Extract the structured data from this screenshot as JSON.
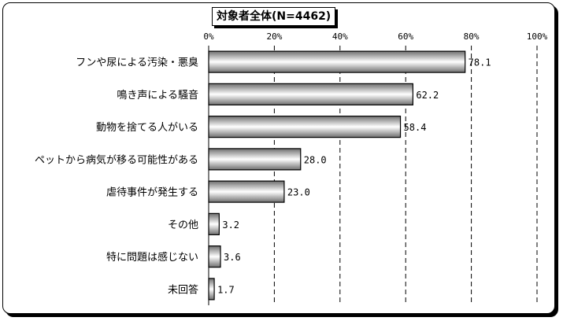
{
  "chart_data": {
    "type": "bar",
    "orientation": "horizontal",
    "title": "対象者全体(N=4462)",
    "categories": [
      "フンや尿による汚染・悪臭",
      "鳴き声による騒音",
      "動物を捨てる人がいる",
      "ペットから病気が移る可能性がある",
      "虐待事件が発生する",
      "その他",
      "特に問題は感じない",
      "未回答"
    ],
    "values": [
      78.1,
      62.2,
      58.4,
      28.0,
      23.0,
      3.2,
      3.6,
      1.7
    ],
    "value_labels": [
      "78.1",
      "62.2",
      "58.4",
      "28.0",
      "23.0",
      "3.2",
      "3.6",
      "1.7"
    ],
    "xlim": [
      0,
      100
    ],
    "ticks": [
      0,
      20,
      40,
      60,
      80,
      100
    ],
    "tick_labels": [
      "0%",
      "20%",
      "40%",
      "60%",
      "80%",
      "100%"
    ],
    "grid": true,
    "colors": {
      "bar_dark": "#6e6e6e",
      "bar_light": "#ffffff",
      "frame": "#000000"
    }
  }
}
